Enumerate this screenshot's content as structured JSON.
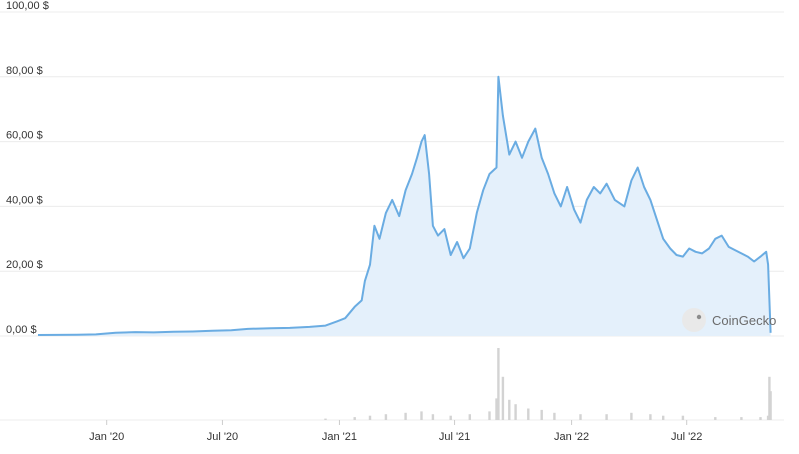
{
  "chart_data": {
    "type": "area",
    "title": "",
    "xlabel": "",
    "ylabel": "",
    "ylim": [
      0,
      100
    ],
    "y_ticks": [
      {
        "value": 0,
        "label": "0,00 $"
      },
      {
        "value": 20,
        "label": "20,00 $"
      },
      {
        "value": 40,
        "label": "40,00 $"
      },
      {
        "value": 60,
        "label": "60,00 $"
      },
      {
        "value": 80,
        "label": "80,00 $"
      },
      {
        "value": 100,
        "label": "100,00 $"
      }
    ],
    "x_ticks": [
      {
        "date": "2020-01-01",
        "label": "Jan '20"
      },
      {
        "date": "2020-07-01",
        "label": "Jul '20"
      },
      {
        "date": "2021-01-01",
        "label": "Jan '21"
      },
      {
        "date": "2021-07-01",
        "label": "Jul '21"
      },
      {
        "date": "2022-01-01",
        "label": "Jan '22"
      },
      {
        "date": "2022-07-01",
        "label": "Jul '22"
      }
    ],
    "xlim": [
      "2019-09-15",
      "2022-12-01"
    ],
    "grid": "horizontal",
    "legend": "none",
    "colors": {
      "line": "#6aace2",
      "area": "#e4f0fb",
      "volume": "#d3d3d3",
      "grid": "#ececec"
    },
    "series": [
      {
        "kind": "price",
        "x": [
          "2019-09-15",
          "2019-10-15",
          "2019-11-15",
          "2019-12-15",
          "2020-01-15",
          "2020-02-15",
          "2020-03-15",
          "2020-04-15",
          "2020-05-15",
          "2020-06-15",
          "2020-07-15",
          "2020-08-10",
          "2020-09-15",
          "2020-10-15",
          "2020-11-15",
          "2020-12-10",
          "2020-12-28",
          "2021-01-10",
          "2021-01-25",
          "2021-02-05",
          "2021-02-10",
          "2021-02-18",
          "2021-02-25",
          "2021-03-05",
          "2021-03-15",
          "2021-03-25",
          "2021-04-05",
          "2021-04-15",
          "2021-04-25",
          "2021-05-03",
          "2021-05-10",
          "2021-05-15",
          "2021-05-22",
          "2021-05-28",
          "2021-06-05",
          "2021-06-15",
          "2021-06-25",
          "2021-07-05",
          "2021-07-15",
          "2021-07-25",
          "2021-08-05",
          "2021-08-15",
          "2021-08-25",
          "2021-09-05",
          "2021-09-08",
          "2021-09-15",
          "2021-09-25",
          "2021-10-05",
          "2021-10-15",
          "2021-10-25",
          "2021-11-05",
          "2021-11-15",
          "2021-11-25",
          "2021-12-05",
          "2021-12-15",
          "2021-12-25",
          "2022-01-05",
          "2022-01-15",
          "2022-01-25",
          "2022-02-05",
          "2022-02-15",
          "2022-02-25",
          "2022-03-10",
          "2022-03-25",
          "2022-04-05",
          "2022-04-15",
          "2022-04-25",
          "2022-05-05",
          "2022-05-15",
          "2022-05-25",
          "2022-06-05",
          "2022-06-15",
          "2022-06-25",
          "2022-07-05",
          "2022-07-15",
          "2022-07-25",
          "2022-08-05",
          "2022-08-15",
          "2022-08-25",
          "2022-09-05",
          "2022-09-15",
          "2022-09-25",
          "2022-10-05",
          "2022-10-15",
          "2022-10-25",
          "2022-11-03",
          "2022-11-06",
          "2022-11-10"
        ],
        "y": [
          0.3,
          0.35,
          0.4,
          0.5,
          1.0,
          1.2,
          1.1,
          1.3,
          1.4,
          1.6,
          1.8,
          2.2,
          2.4,
          2.5,
          2.8,
          3.2,
          4.5,
          5.5,
          9.0,
          11.0,
          17.0,
          22.0,
          34.0,
          30.0,
          38.0,
          42.0,
          37.0,
          45.0,
          50.0,
          55.0,
          60.0,
          62.0,
          50.0,
          34.0,
          31.0,
          33.0,
          25.0,
          29.0,
          24.0,
          27.0,
          38.0,
          45.0,
          50.0,
          52.0,
          80.0,
          68.0,
          56.0,
          60.0,
          55.0,
          60.0,
          64.0,
          55.0,
          50.0,
          44.0,
          40.0,
          46.0,
          39.0,
          35.0,
          42.0,
          46.0,
          44.0,
          47.0,
          42.0,
          40.0,
          48.0,
          52.0,
          46.0,
          42.0,
          36.0,
          30.0,
          27.0,
          25.0,
          24.5,
          27.0,
          26.0,
          25.5,
          27.0,
          30.0,
          31.0,
          27.5,
          26.5,
          25.5,
          24.5,
          23.0,
          24.5,
          26.0,
          22.0,
          1.0
        ]
      },
      {
        "kind": "volume",
        "x": [
          "2020-12-10",
          "2021-01-25",
          "2021-02-18",
          "2021-03-15",
          "2021-04-15",
          "2021-05-10",
          "2021-05-28",
          "2021-06-25",
          "2021-07-25",
          "2021-08-25",
          "2021-09-05",
          "2021-09-08",
          "2021-09-15",
          "2021-09-25",
          "2021-10-05",
          "2021-10-25",
          "2021-11-15",
          "2021-12-05",
          "2022-01-15",
          "2022-02-25",
          "2022-04-05",
          "2022-05-05",
          "2022-05-25",
          "2022-06-25",
          "2022-08-15",
          "2022-09-25",
          "2022-10-25",
          "2022-11-06",
          "2022-11-08",
          "2022-11-10"
        ],
        "y": [
          1,
          2,
          3,
          4,
          5,
          6,
          4,
          3,
          4,
          6,
          15,
          50,
          30,
          14,
          11,
          8,
          7,
          5,
          4,
          4,
          5,
          4,
          3,
          3,
          2,
          2,
          2,
          3,
          30,
          20
        ]
      }
    ]
  },
  "brand": {
    "name": "CoinGecko",
    "icon": "coingecko-gecko-icon"
  }
}
